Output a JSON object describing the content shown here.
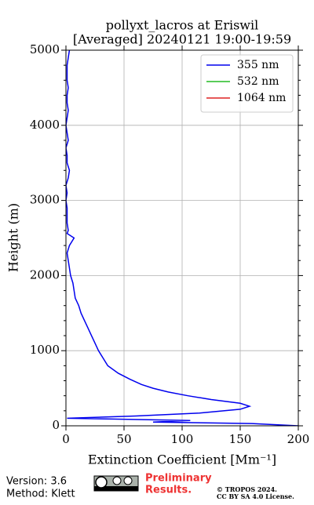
{
  "chart_data": {
    "type": "line",
    "title": "pollyxt_lacros at Eriswil",
    "subtitle": "[Averaged] 20240121 19:00-19:59",
    "xlabel": "Extinction Coefficient [Mm⁻¹]",
    "ylabel": "Height (m)",
    "xlim": [
      0,
      200
    ],
    "xticks": [
      0,
      50,
      100,
      150,
      200
    ],
    "ylim": [
      0,
      5000
    ],
    "yticks": [
      0,
      1000,
      2000,
      3000,
      4000,
      5000
    ],
    "yminorticks": [
      200,
      400,
      600,
      800,
      1200,
      1400,
      1600,
      1800,
      2200,
      2400,
      2600,
      2800,
      3200,
      3400,
      3600,
      3800,
      4200,
      4400,
      4600,
      4800
    ],
    "grid": true,
    "legend": "upper right",
    "heights": [
      0,
      30,
      50,
      70,
      90,
      100,
      130,
      170,
      220,
      260,
      300,
      350,
      400,
      450,
      500,
      550,
      620,
      700,
      800,
      900,
      1000,
      1100,
      1200,
      1300,
      1400,
      1500,
      1600,
      1700,
      1800,
      1900,
      2000,
      2100,
      2200,
      2300,
      2400,
      2500,
      2560,
      2600,
      2700,
      2800,
      2900,
      3000,
      3100,
      3200,
      3300,
      3400,
      3500,
      3600,
      3700,
      3800,
      3900,
      4000,
      4100,
      4200,
      4300,
      4400,
      4500,
      4600,
      4700,
      4800,
      4900,
      5000
    ],
    "series": [
      {
        "name": "355 nm",
        "color": "#0000ee",
        "values": [
          200,
          160,
          75,
          107,
          40,
          1,
          60,
          115,
          150,
          158,
          150,
          125,
          105,
          88,
          75,
          65,
          55,
          45,
          36,
          32,
          28,
          25,
          22,
          19,
          16,
          13,
          11,
          8,
          7,
          6,
          4,
          3,
          2,
          1,
          3,
          7,
          1,
          2,
          1,
          1,
          1,
          0,
          1,
          0,
          2,
          3,
          1,
          1,
          0,
          2,
          1,
          0,
          1,
          2,
          1,
          1,
          2,
          1,
          1,
          1,
          2,
          3
        ]
      },
      {
        "name": "532 nm",
        "color": "#22bb22",
        "values": [
          null,
          null,
          null,
          null,
          null,
          null,
          null,
          null,
          null,
          null,
          null,
          null,
          null,
          null,
          null,
          null,
          null,
          null,
          null,
          null,
          null,
          null,
          null,
          null,
          null,
          null,
          null,
          null,
          null,
          null,
          null,
          null,
          null,
          null,
          null,
          null,
          null,
          null,
          null,
          null,
          null,
          null,
          null,
          null,
          null,
          null,
          null,
          null,
          null,
          null,
          null,
          null,
          null,
          null,
          null,
          null,
          null,
          null,
          null,
          null,
          null,
          null
        ]
      },
      {
        "name": "1064 nm",
        "color": "#dd2222",
        "values": [
          null,
          null,
          null,
          null,
          null,
          null,
          null,
          null,
          null,
          null,
          null,
          null,
          null,
          null,
          null,
          null,
          null,
          null,
          null,
          null,
          null,
          null,
          null,
          null,
          null,
          null,
          null,
          null,
          null,
          null,
          null,
          null,
          null,
          null,
          null,
          null,
          null,
          null,
          null,
          null,
          null,
          null,
          null,
          null,
          null,
          null,
          null,
          null,
          null,
          null,
          null,
          null,
          null,
          null,
          null,
          null,
          null,
          null,
          null,
          null,
          null,
          null
        ]
      }
    ]
  },
  "footer": {
    "version": "Version: 3.6",
    "method": "Method: Klett",
    "preliminary": [
      "Preliminary",
      "Results."
    ],
    "copyright": [
      "© TROPOS 2024.",
      "CC BY SA 4.0 License."
    ]
  }
}
